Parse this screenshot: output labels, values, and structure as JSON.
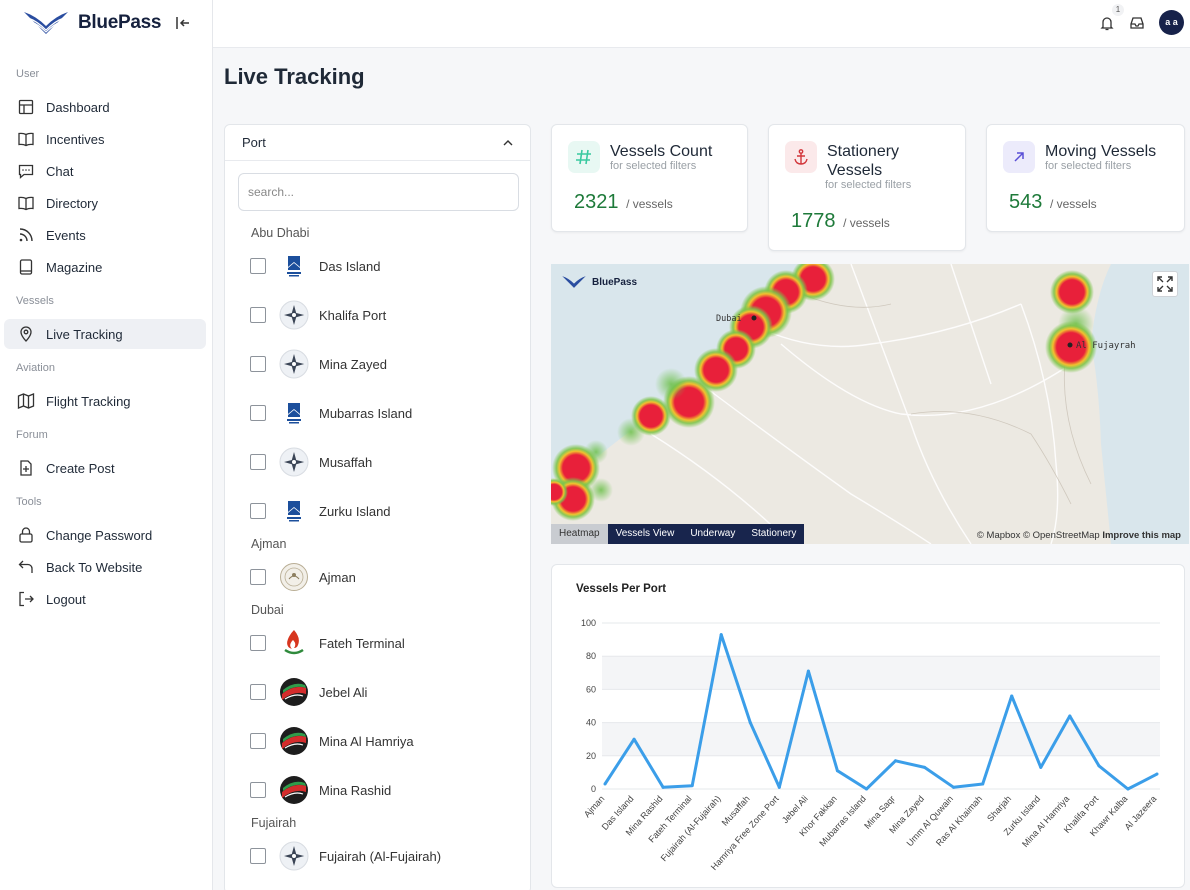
{
  "app": {
    "name": "BluePass"
  },
  "sidebar": {
    "sections": [
      {
        "label": "User",
        "items": [
          {
            "label": "Dashboard",
            "icon": "dashboard-icon"
          },
          {
            "label": "Incentives",
            "icon": "book-icon"
          },
          {
            "label": "Chat",
            "icon": "chat-icon"
          },
          {
            "label": "Directory",
            "icon": "book-icon"
          },
          {
            "label": "Events",
            "icon": "rss-icon"
          },
          {
            "label": "Magazine",
            "icon": "tablet-icon"
          }
        ]
      },
      {
        "label": "Vessels",
        "items": [
          {
            "label": "Live Tracking",
            "icon": "location-pin-icon",
            "active": true
          }
        ]
      },
      {
        "label": "Aviation",
        "items": [
          {
            "label": "Flight Tracking",
            "icon": "map-icon"
          }
        ]
      },
      {
        "label": "Forum",
        "items": [
          {
            "label": "Create Post",
            "icon": "add-file-icon"
          }
        ]
      },
      {
        "label": "Tools",
        "items": [
          {
            "label": "Change Password",
            "icon": "lock-icon"
          },
          {
            "label": "Back To Website",
            "icon": "back-arrow-icon"
          },
          {
            "label": "Logout",
            "icon": "logout-icon"
          }
        ]
      }
    ]
  },
  "header": {
    "notification_count": "1",
    "avatar_initials": "a a"
  },
  "page": {
    "title": "Live Tracking"
  },
  "port_filter": {
    "label": "Port",
    "search_placeholder": "search...",
    "groups": [
      {
        "name": "Abu Dhabi",
        "ports": [
          {
            "name": "Das Island",
            "logo": "adnoc"
          },
          {
            "name": "Khalifa Port",
            "logo": "compass"
          },
          {
            "name": "Mina Zayed",
            "logo": "compass"
          },
          {
            "name": "Mubarras Island",
            "logo": "adnoc"
          },
          {
            "name": "Musaffah",
            "logo": "compass"
          },
          {
            "name": "Zurku Island",
            "logo": "adnoc"
          }
        ]
      },
      {
        "name": "Ajman",
        "ports": [
          {
            "name": "Ajman",
            "logo": "seal"
          }
        ]
      },
      {
        "name": "Dubai",
        "ports": [
          {
            "name": "Fateh Terminal",
            "logo": "flame"
          },
          {
            "name": "Jebel Ali",
            "logo": "dpworld"
          },
          {
            "name": "Mina Al Hamriya",
            "logo": "dpworld"
          },
          {
            "name": "Mina Rashid",
            "logo": "dpworld"
          }
        ]
      },
      {
        "name": "Fujairah",
        "ports": [
          {
            "name": "Fujairah (Al-Fujairah)",
            "logo": "compass"
          }
        ]
      }
    ]
  },
  "stats": {
    "vessels_count": {
      "title": "Vessels Count",
      "subtitle": "for selected filters",
      "value": "2321",
      "unit": "/ vessels",
      "icon": "hash-icon"
    },
    "stationery": {
      "title": "Stationery Vessels",
      "subtitle": "for selected filters",
      "value": "1778",
      "unit": "/ vessels",
      "icon": "anchor-icon"
    },
    "moving": {
      "title": "Moving Vessels",
      "subtitle": "for selected filters",
      "value": "543",
      "unit": "/ vessels",
      "icon": "arrow-up-right-icon"
    }
  },
  "map": {
    "brand": "BluePass",
    "city_labels": [
      "Dubai",
      "Al Fujayrah"
    ],
    "tabs": [
      "Heatmap",
      "Vessels View",
      "Underway",
      "Stationery"
    ],
    "active_tab": "Heatmap",
    "attribution": "© Mapbox © OpenStreetMap",
    "improve_link": "Improve this map"
  },
  "chart_data": {
    "type": "line",
    "title": "Vessels Per Port",
    "categories": [
      "Ajman",
      "Das Island",
      "Mina Rashid",
      "Fateh Terminal",
      "Fujairah (Al-Fujairah)",
      "Musaffah",
      "Hamriya Free Zone Port",
      "Jebel Ali",
      "Khor Fakkan",
      "Mubarras Island",
      "Mina Saqr",
      "Mina Zayed",
      "Umm Al Quwain",
      "Ras Al Khaimah",
      "Sharjah",
      "Zurku Island",
      "Mina Al Hamriya",
      "Khalifa Port",
      "Khawr Kalba",
      "Al Jazeera"
    ],
    "values": [
      3,
      30,
      1,
      2,
      93,
      40,
      1,
      71,
      11,
      0,
      17,
      13,
      1,
      3,
      56,
      13,
      44,
      14,
      0,
      9
    ],
    "ylim": [
      0,
      100
    ],
    "yticks": [
      0,
      20,
      40,
      60,
      80,
      100
    ],
    "color": "#3b9ee9"
  }
}
